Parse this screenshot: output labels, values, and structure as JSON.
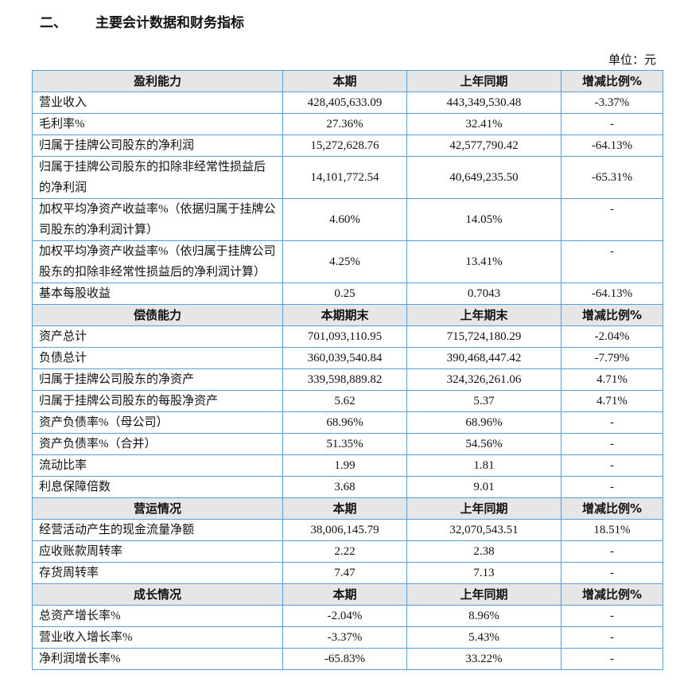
{
  "heading": {
    "number": "二、",
    "title": "主要会计数据和财务指标"
  },
  "unit": "单位：元",
  "sections": [
    {
      "header": [
        "盈利能力",
        "本期",
        "上年同期",
        "增减比例%"
      ],
      "rows": [
        [
          "营业收入",
          "428,405,633.09",
          "443,349,530.48",
          "-3.37%"
        ],
        [
          "毛利率%",
          "27.36%",
          "32.41%",
          "-"
        ],
        [
          "归属于挂牌公司股东的净利润",
          "15,272,628.76",
          "42,577,790.42",
          "-64.13%"
        ],
        [
          "归属于挂牌公司股东的扣除非经常性损益后的净利润",
          "14,101,772.54",
          "40,649,235.50",
          "-65.31%"
        ],
        [
          "加权平均净资产收益率%（依据归属于挂牌公司股东的净利润计算）",
          "4.60%",
          "14.05%",
          "-"
        ],
        [
          "加权平均净资产收益率%（依归属于挂牌公司股东的扣除非经常性损益后的净利润计算）",
          "4.25%",
          "13.41%",
          "-"
        ],
        [
          "基本每股收益",
          "0.25",
          "0.7043",
          "-64.13%"
        ]
      ]
    },
    {
      "header": [
        "偿债能力",
        "本期期末",
        "上年期末",
        "增减比例%"
      ],
      "rows": [
        [
          "资产总计",
          "701,093,110.95",
          "715,724,180.29",
          "-2.04%"
        ],
        [
          "负债总计",
          "360,039,540.84",
          "390,468,447.42",
          "-7.79%"
        ],
        [
          "归属于挂牌公司股东的净资产",
          "339,598,889.82",
          "324,326,261.06",
          "4.71%"
        ],
        [
          "归属于挂牌公司股东的每股净资产",
          "5.62",
          "5.37",
          "4.71%"
        ],
        [
          "资产负债率%（母公司）",
          "68.96%",
          "68.96%",
          "-"
        ],
        [
          "资产负债率%（合并）",
          "51.35%",
          "54.56%",
          "-"
        ],
        [
          "流动比率",
          "1.99",
          "1.81",
          "-"
        ],
        [
          "利息保障倍数",
          "3.68",
          "9.01",
          "-"
        ]
      ]
    },
    {
      "header": [
        "营运情况",
        "本期",
        "上年同期",
        "增减比例%"
      ],
      "rows": [
        [
          "经营活动产生的现金流量净额",
          "38,006,145.79",
          "32,070,543.51",
          "18.51%"
        ],
        [
          "应收账款周转率",
          "2.22",
          "2.38",
          "-"
        ],
        [
          "存货周转率",
          "7.47",
          "7.13",
          "-"
        ]
      ]
    },
    {
      "header": [
        "成长情况",
        "本期",
        "上年同期",
        "增减比例%"
      ],
      "rows": [
        [
          "总资产增长率%",
          "-2.04%",
          "8.96%",
          "-"
        ],
        [
          "营业收入增长率%",
          "-3.37%",
          "5.43%",
          "-"
        ],
        [
          "净利润增长率%",
          "-65.83%",
          "33.22%",
          "-"
        ]
      ]
    }
  ]
}
